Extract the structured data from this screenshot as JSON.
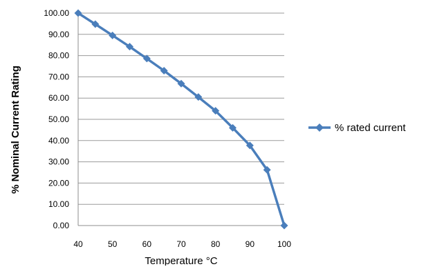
{
  "chart_data": {
    "type": "line",
    "title": "",
    "xlabel": "Temperature °C",
    "ylabel": "% Nominal Current Rating",
    "x": [
      40,
      45,
      50,
      55,
      60,
      65,
      70,
      75,
      80,
      85,
      90,
      95,
      100
    ],
    "series": [
      {
        "name": "% rated current",
        "values": [
          100.0,
          94.8,
          89.5,
          84.2,
          78.6,
          72.9,
          66.8,
          60.5,
          54.0,
          46.0,
          37.7,
          26.2,
          0.0
        ],
        "color": "#4a7ebb",
        "marker": "diamond"
      }
    ],
    "xlim": [
      40,
      100
    ],
    "ylim": [
      0,
      100
    ],
    "xticks": [
      40,
      50,
      60,
      70,
      80,
      90,
      100
    ],
    "yticks": [
      "0.00",
      "10.00",
      "20.00",
      "30.00",
      "40.00",
      "50.00",
      "60.00",
      "70.00",
      "80.00",
      "90.00",
      "100.00"
    ],
    "grid": "horizontal",
    "legend": "right"
  }
}
